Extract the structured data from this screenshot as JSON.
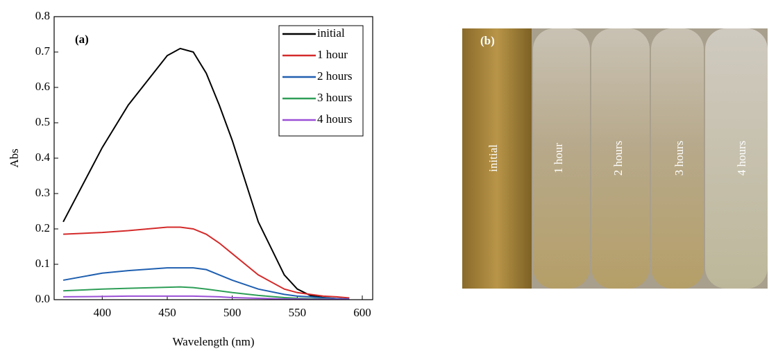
{
  "chart_data": {
    "type": "line",
    "annotation": "(a)",
    "x_label": "Wavelength (nm)",
    "y_label": "Abs",
    "x": [
      370,
      400,
      420,
      450,
      460,
      470,
      480,
      490,
      500,
      520,
      540,
      550,
      560,
      570,
      580,
      590
    ],
    "series": [
      {
        "name": "initial",
        "color": "#000000",
        "values": [
          0.22,
          0.43,
          0.55,
          0.69,
          0.71,
          0.7,
          0.64,
          0.55,
          0.45,
          0.22,
          0.07,
          0.03,
          0.012,
          0.006,
          0.003,
          0.001
        ]
      },
      {
        "name": "1 hour",
        "color": "#d42a2a",
        "values": [
          0.185,
          0.19,
          0.195,
          0.205,
          0.205,
          0.2,
          0.185,
          0.16,
          0.13,
          0.07,
          0.03,
          0.02,
          0.015,
          0.01,
          0.008,
          0.005
        ]
      },
      {
        "name": "2 hours",
        "color": "#1f5fb0",
        "values": [
          0.055,
          0.075,
          0.082,
          0.09,
          0.09,
          0.09,
          0.085,
          0.07,
          0.055,
          0.03,
          0.015,
          0.01,
          0.008,
          0.005,
          0.003,
          0.002
        ]
      },
      {
        "name": "3 hours",
        "color": "#2e9e57",
        "values": [
          0.025,
          0.03,
          0.032,
          0.035,
          0.036,
          0.034,
          0.03,
          0.025,
          0.02,
          0.012,
          0.006,
          0.004,
          0.003,
          0.002,
          0.001,
          0.001
        ]
      },
      {
        "name": "4 hours",
        "color": "#9a4fd6",
        "values": [
          0.008,
          0.009,
          0.01,
          0.01,
          0.01,
          0.01,
          0.009,
          0.008,
          0.006,
          0.004,
          0.002,
          0.002,
          0.001,
          0.001,
          0.001,
          0.001
        ]
      }
    ],
    "xlim": [
      363,
      608
    ],
    "xticks": [
      400,
      450,
      500,
      550,
      600
    ],
    "ylim": [
      0,
      0.8
    ],
    "yticks": [
      {
        "value": 0,
        "label": "0.0"
      },
      0.1,
      0.2,
      0.3,
      0.4,
      0.5,
      0.6,
      0.7,
      0.8
    ],
    "legend": "upper right"
  },
  "photo": {
    "label": "(b)",
    "tubes": [
      "initial",
      "1 hour",
      "2 hours",
      "3 hours",
      "4 hours"
    ]
  }
}
